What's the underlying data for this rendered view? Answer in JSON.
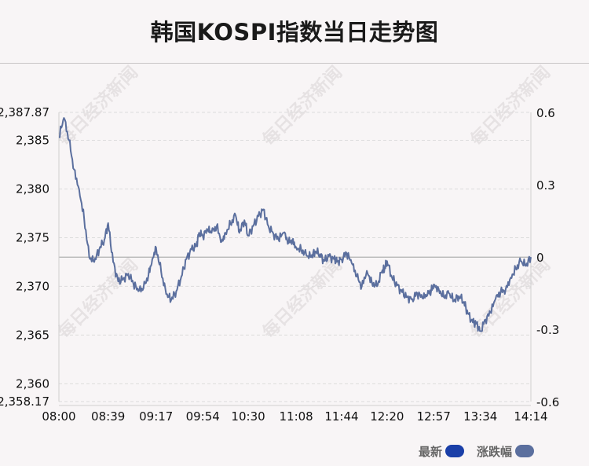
{
  "title": "韩国KOSPI指数当日走势图",
  "watermark": "每日经济新闻",
  "legend": {
    "latest_label": "最新",
    "latest_color": "#1a3fa8",
    "change_label": "涨跌幅",
    "change_color": "#5b6f9e"
  },
  "chart_data": {
    "type": "line",
    "title": "韩国KOSPI指数当日走势图",
    "xlabel": "",
    "ylabel": "",
    "x_ticks": [
      "08:00",
      "08:39",
      "09:17",
      "09:54",
      "10:30",
      "11:08",
      "11:44",
      "12:20",
      "12:57",
      "13:34",
      "14:14"
    ],
    "y_left": {
      "min": 2358.17,
      "max": 2387.87,
      "ticks": [
        "2,387.87",
        "2,385",
        "2,380",
        "2,375",
        "2,370",
        "2,365",
        "2,360",
        "2,358.17"
      ],
      "tick_values": [
        2387.87,
        2385,
        2380,
        2375,
        2370,
        2365,
        2360,
        2358.17
      ]
    },
    "y_right": {
      "min": -0.6,
      "max": 0.6,
      "ticks": [
        "0.6",
        "0.3",
        "0",
        "-0.3",
        "-0.6"
      ],
      "tick_values": [
        0.6,
        0.3,
        0,
        -0.3,
        -0.6
      ]
    },
    "reference_value": 2373.0,
    "grid": true,
    "line_color": "#5b6f9e",
    "series": [
      {
        "name": "最新",
        "x": [
          "08:00",
          "08:04",
          "08:08",
          "08:12",
          "08:16",
          "08:20",
          "08:24",
          "08:28",
          "08:32",
          "08:36",
          "08:39",
          "08:43",
          "08:47",
          "08:51",
          "08:55",
          "08:59",
          "09:03",
          "09:07",
          "09:11",
          "09:14",
          "09:17",
          "09:21",
          "09:25",
          "09:29",
          "09:33",
          "09:37",
          "09:41",
          "09:45",
          "09:49",
          "09:51",
          "09:54",
          "09:58",
          "10:01",
          "10:05",
          "10:09",
          "10:12",
          "10:16",
          "10:20",
          "10:23",
          "10:27",
          "10:30",
          "10:34",
          "10:38",
          "10:42",
          "10:46",
          "10:50",
          "10:54",
          "10:58",
          "11:02",
          "11:05",
          "11:08",
          "11:12",
          "11:16",
          "11:20",
          "11:23",
          "11:27",
          "11:30",
          "11:34",
          "11:38",
          "11:41",
          "11:44",
          "11:48",
          "11:52",
          "11:56",
          "12:00",
          "12:04",
          "12:08",
          "12:12",
          "12:16",
          "12:18",
          "12:20",
          "12:24",
          "12:28",
          "12:32",
          "12:36",
          "12:40",
          "12:44",
          "12:48",
          "12:52",
          "12:55",
          "12:57",
          "13:01",
          "13:05",
          "13:09",
          "13:13",
          "13:17",
          "13:21",
          "13:24",
          "13:28",
          "13:31",
          "13:34",
          "13:38",
          "13:42",
          "13:46",
          "13:50",
          "13:54",
          "13:58",
          "14:02",
          "14:06",
          "14:10",
          "14:14"
        ],
        "values": [
          2385.3,
          2387.3,
          2385.0,
          2382.0,
          2380.0,
          2377.0,
          2373.0,
          2372.5,
          2373.8,
          2374.8,
          2376.5,
          2372.5,
          2370.5,
          2370.8,
          2371.3,
          2370.3,
          2369.5,
          2369.8,
          2371.2,
          2372.8,
          2374.0,
          2371.5,
          2369.2,
          2368.6,
          2369.5,
          2371.0,
          2372.8,
          2373.8,
          2374.2,
          2375.5,
          2375.2,
          2375.8,
          2375.5,
          2376.2,
          2374.6,
          2375.5,
          2376.4,
          2377.3,
          2375.5,
          2376.8,
          2375.2,
          2376.2,
          2377.2,
          2377.9,
          2376.2,
          2375.4,
          2374.8,
          2375.5,
          2374.5,
          2374.8,
          2374.0,
          2373.8,
          2373.2,
          2373.0,
          2373.6,
          2373.3,
          2372.6,
          2373.1,
          2372.8,
          2372.6,
          2372.8,
          2373.4,
          2372.4,
          2371.0,
          2370.0,
          2371.6,
          2370.4,
          2370.0,
          2371.5,
          2371.8,
          2372.6,
          2370.9,
          2370.1,
          2369.4,
          2368.9,
          2368.7,
          2369.3,
          2368.8,
          2369.1,
          2369.6,
          2370.2,
          2369.7,
          2368.9,
          2369.3,
          2368.5,
          2369.0,
          2368.4,
          2367.2,
          2366.3,
          2366.2,
          2365.4,
          2366.6,
          2367.3,
          2368.7,
          2369.4,
          2369.7,
          2370.9,
          2371.8,
          2372.6,
          2372.1,
          2373.0
        ]
      }
    ]
  }
}
